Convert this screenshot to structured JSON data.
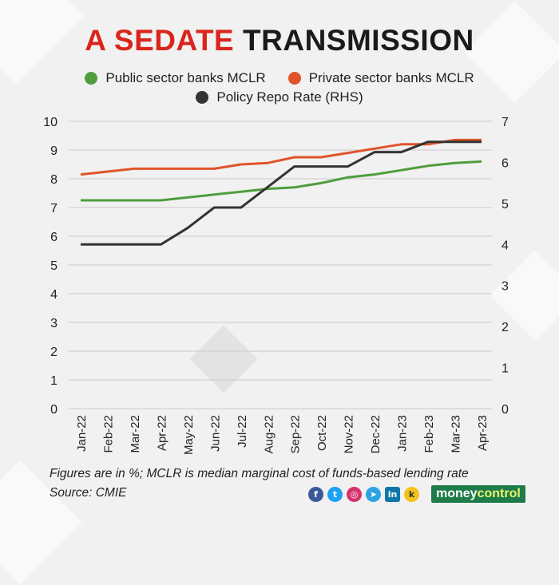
{
  "title": {
    "accent": "A SEDATE",
    "rest": "TRANSMISSION"
  },
  "colors": {
    "public": "#4f9d3c",
    "private": "#e0542a",
    "repo": "#333333",
    "title_accent": "#d9261c",
    "brand_bg": "#1e7b4a"
  },
  "chart_data": {
    "type": "line",
    "title": "A SEDATE TRANSMISSION",
    "categories": [
      "Jan-22",
      "Feb-22",
      "Mar-22",
      "Apr-22",
      "May-22",
      "Jun-22",
      "Jul-22",
      "Aug-22",
      "Sep-22",
      "Oct-22",
      "Nov-22",
      "Dec-22",
      "Jan-23",
      "Feb-23",
      "Mar-23",
      "Apr-23"
    ],
    "series": [
      {
        "name": "Public sector banks MCLR",
        "axis": "left",
        "values": [
          7.25,
          7.25,
          7.25,
          7.25,
          7.35,
          7.45,
          7.55,
          7.65,
          7.7,
          7.85,
          8.05,
          8.15,
          8.3,
          8.45,
          8.55,
          8.6
        ]
      },
      {
        "name": "Private sector banks MCLR",
        "axis": "left",
        "values": [
          8.15,
          8.25,
          8.35,
          8.35,
          8.35,
          8.35,
          8.5,
          8.55,
          8.75,
          8.75,
          8.9,
          9.05,
          9.2,
          9.2,
          9.35,
          9.35
        ]
      },
      {
        "name": "Policy Repo Rate (RHS)",
        "axis": "right",
        "step": true,
        "values": [
          4.0,
          4.0,
          4.0,
          4.0,
          4.4,
          4.9,
          4.9,
          5.4,
          5.9,
          5.9,
          5.9,
          6.25,
          6.25,
          6.5,
          6.5,
          6.5
        ]
      }
    ],
    "ylim": [
      0,
      10
    ],
    "y2lim": [
      0,
      7
    ],
    "yticks": [
      "0",
      "1",
      "2",
      "3",
      "4",
      "5",
      "6",
      "7",
      "8",
      "9",
      "10"
    ],
    "y2ticks": [
      "0",
      "1",
      "2",
      "3",
      "4",
      "5",
      "6",
      "7"
    ],
    "grid": "horizontal",
    "legend_placement": "top-center"
  },
  "footnote": "Figures are in %; MCLR is median marginal cost of funds-based lending rate",
  "source": "Source: CMIE",
  "social_icons": [
    "facebook-icon",
    "twitter-icon",
    "instagram-icon",
    "telegram-icon",
    "linkedin-icon",
    "koo-icon"
  ],
  "brand": {
    "part1": "money",
    "part2": "control"
  }
}
